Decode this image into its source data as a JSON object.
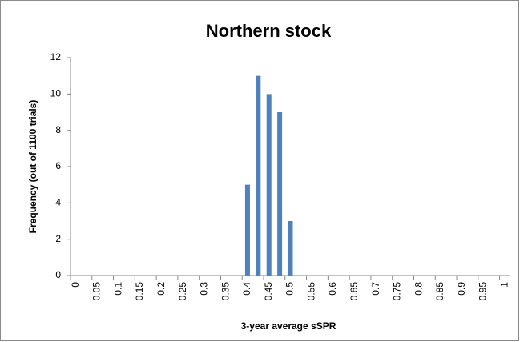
{
  "chart_data": {
    "type": "bar",
    "title": "Northern stock",
    "x_label": "3-year average sSPR",
    "y_label": "Frequency (out of 1100 trials)",
    "categories": [
      "0",
      null,
      "0.05",
      null,
      "0.1",
      null,
      "0.15",
      null,
      "0.2",
      null,
      "0.25",
      null,
      "0.3",
      null,
      "0.35",
      null,
      "0.4",
      null,
      "0.45",
      null,
      "0.5",
      null,
      "0.55",
      null,
      "0.6",
      null,
      "0.65",
      null,
      "0.7",
      null,
      "0.75",
      null,
      "0.8",
      null,
      "0.85",
      null,
      "0.9",
      null,
      "0.95",
      null,
      "1"
    ],
    "values": [
      0,
      0,
      0,
      0,
      0,
      0,
      0,
      0,
      0,
      0,
      0,
      0,
      0,
      0,
      0,
      0,
      5,
      11,
      10,
      9,
      3,
      0,
      0,
      0,
      0,
      0,
      0,
      0,
      0,
      0,
      0,
      0,
      0,
      0,
      0,
      0,
      0,
      0,
      0,
      0,
      0
    ],
    "color": "#4f81bd",
    "ylim": [
      0,
      12
    ],
    "yticks": [
      0,
      2,
      4,
      6,
      8,
      10,
      12
    ],
    "grid": false
  }
}
